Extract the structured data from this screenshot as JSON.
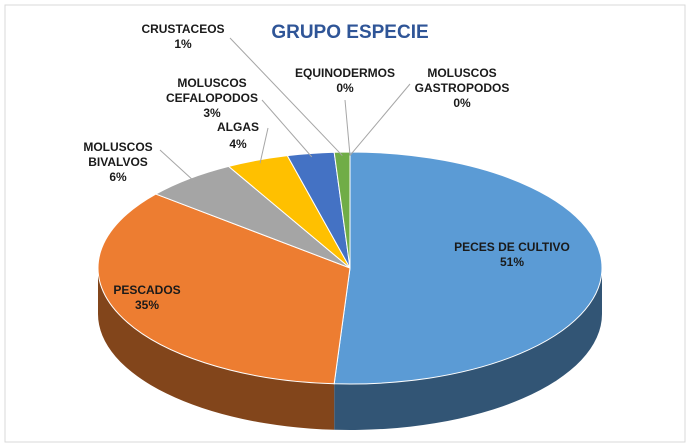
{
  "chart_data": {
    "type": "pie",
    "title": "GRUPO ESPECIE",
    "categories": [
      "PECES DE CULTIVO",
      "PESCADOS",
      "MOLUSCOS BIVALVOS",
      "ALGAS",
      "MOLUSCOS CEFALOPODOS",
      "CRUSTACEOS",
      "EQUINODERMOS",
      "MOLUSCOS GASTROPODOS"
    ],
    "values": [
      51,
      35,
      6,
      4,
      3,
      1,
      0,
      0
    ],
    "value_labels": [
      "51%",
      "35%",
      "6%",
      "4%",
      "3%",
      "1%",
      "0%",
      "0%"
    ],
    "colors": [
      "#5b9bd5",
      "#ed7d31",
      "#a5a5a5",
      "#ffc000",
      "#4472c4",
      "#70ad47",
      "#264478",
      "#9e480e"
    ]
  }
}
